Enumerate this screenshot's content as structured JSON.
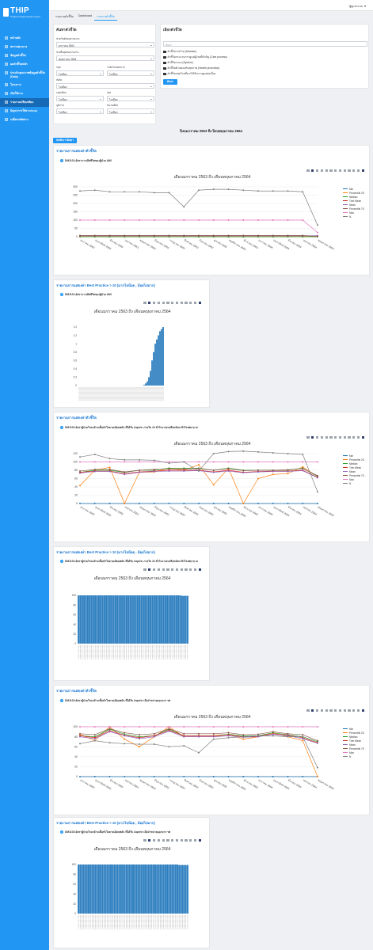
{
  "app": {
    "logo": "THIP",
    "logo_sub": "Thailand Hospital Indicator Project"
  },
  "user": {
    "name": "ผู้ดูแลระบบ"
  },
  "menu": [
    {
      "label": "หน้าหลัก",
      "icon": "home-icon"
    },
    {
      "label": "สถานพยาบาล",
      "icon": "hospital-icon"
    },
    {
      "label": "ข้อมูลตัวชี้วัด",
      "icon": "database-icon"
    },
    {
      "label": "ผลตัวชี้วัดหลัก",
      "icon": "chart-icon"
    },
    {
      "label": "ประเมินคุณภาพข้อมูลตัวชี้วัด (Data)",
      "icon": "check-icon"
    },
    {
      "label": "โครงการ",
      "icon": "folder-icon"
    },
    {
      "label": "เปิดใช้งาน",
      "icon": "power-icon"
    },
    {
      "label": "รายงานเปรียบเทียบ",
      "icon": "compare-icon"
    },
    {
      "label": "ปัญหาการใช้งานระบบ",
      "icon": "help-icon"
    },
    {
      "label": "เปลี่ยนรหัสผ่าน",
      "icon": "key-icon"
    }
  ],
  "tabs": [
    "รายงานตัวชี้วัด",
    "Dashboard",
    "รายงานตัวชี้วัด"
  ],
  "filter": {
    "title": "ค้นหาตัวชี้วัด",
    "start_label": "ช่วงเริ่มต้นของรายงาน",
    "start_value": "มกราคม 2563",
    "end_label": "ช่วงสิ้นสุดของรายงาน",
    "end_value": "พฤษภาคม 2564",
    "fields": [
      {
        "label": "กลุ่ม",
        "value": "ไม่เลือก"
      },
      {
        "label": "ระดับโรงพยาบาล",
        "value": "ไม่เลือก"
      },
      {
        "label": "สังกัด",
        "value": "ไม่เลือก"
      },
      {
        "label": "กลุ่มเขียน",
        "value": "ไม่เลือก"
      },
      {
        "label": "เขต",
        "value": "ไม่เลือก"
      },
      {
        "label": "ภูมิภาค",
        "value": "ไม่เลือก"
      },
      {
        "label": "ขนาดเตียง",
        "value": "ไม่เลือก"
      }
    ]
  },
  "indicator_panel": {
    "title": "เลือกตัวชี้วัด",
    "search_placeholder": "ค้นหา",
    "tree": [
      "ตัวชี้วัดรายโรค (Disease)",
      "ตัวชี้วัดกระบวนการดูแลผู้ป่วยที่สำคัญ (Care process)",
      "ตัวชี้วัดระบบ (System)",
      "ตัวชี้วัดด้านส่งเสริมสุขภาพ (Health promotion)",
      "ตัวชี้วัดกลุ่มโรคที่ควรได้รับการดูแลต่อเนื่อง"
    ],
    "button": "ค้นหา"
  },
  "report_heading": "ปีงบมกราคม 2563 ถึง ปีงบพฤษภาคม 2564",
  "export_button": "บันทึกการค้นหา",
  "section_title_trend": "รายงานการแสดงค่าตัวชี้วัด",
  "section_title_best": "รายงานการแสดงค่า Best Practice > 10 (มากไปน้อย , น้อยไปมาก)",
  "chart_title": "เดือนมกราคม 2563 ถึง เดือนพฤษภาคม 2564",
  "legend": [
    {
      "name": "Min",
      "color": "#1f77b4"
    },
    {
      "name": "Percentile 25",
      "color": "#ff7f0e"
    },
    {
      "name": "Median",
      "color": "#2ca02c"
    },
    {
      "name": "Trim Mean",
      "color": "#d62728"
    },
    {
      "name": "Mean",
      "color": "#9467bd"
    },
    {
      "name": "Percentile 75",
      "color": "#8c564b"
    },
    {
      "name": "Max",
      "color": "#e377c2"
    },
    {
      "name": "N",
      "color": "#7f7f7f"
    }
  ],
  "months": [
    "มกราคม 2563",
    "กุมภาพันธ์ 2563",
    "มีนาคม 2563",
    "เมษายน 2563",
    "พฤษภาคม 2563",
    "มิถุนายน 2563",
    "กรกฎาคม 2563",
    "สิงหาคม 2563",
    "กันยายน 2563",
    "ตุลาคม 2563",
    "พฤศจิกายน 2563",
    "ธันวาคม 2563",
    "มกราคม 2564",
    "กุมภาพันธ์ 2564",
    "มีนาคม 2564",
    "เมษายน 2564",
    "พฤษภาคม 2564"
  ],
  "indicators": [
    {
      "code": "DM1101",
      "name": "อัตราการเสียชีวิตของผู้ป่วย AMI"
    },
    {
      "code": "DM1102",
      "name": "อัตราผู้ป่วยโรคกล้ามเนื้อหัวใจตายเฉียบพลัน ที่ได้รับ Aspirin ภายใน 24 ชั่วโมง ก่อนหรือหลังมาถึงโรงพยาบาล"
    },
    {
      "code": "DM1103",
      "name": "อัตราผู้ป่วยโรคกล้ามเนื้อหัวใจตายเฉียบพลัน ที่ได้รับ Aspirin เมื่อจำหน่ายออกจาก รพ"
    }
  ],
  "chart_data": [
    {
      "type": "line",
      "title": "เดือนมกราคม 2563 ถึง เดือนพฤษภาคม 2564",
      "x": [
        "มกราคม 2563",
        "กุมภาพันธ์ 2563",
        "มีนาคม 2563",
        "เมษายน 2563",
        "พฤษภาคม 2563",
        "มิถุนายน 2563",
        "กรกฎาคม 2563",
        "สิงหาคม 2563",
        "กันยายน 2563",
        "ตุลาคม 2563",
        "พฤศจิกายน 2563",
        "ธันวาคม 2563",
        "มกราคม 2564",
        "กุมภาพันธ์ 2564",
        "มีนาคม 2564",
        "เมษายน 2564",
        "พฤษภาคม 2564"
      ],
      "ylim": [
        0,
        300
      ],
      "yticks": [
        0,
        50,
        100,
        150,
        200,
        250,
        300
      ],
      "series": [
        {
          "name": "Min",
          "values": [
            0,
            0,
            0,
            0,
            0,
            0,
            0,
            0,
            0,
            0,
            0,
            0,
            0,
            0,
            0,
            0,
            0
          ]
        },
        {
          "name": "Percentile 25",
          "values": [
            0,
            0,
            0,
            0,
            0,
            0,
            0,
            0,
            0,
            0,
            0,
            0,
            0,
            0,
            0,
            0,
            0
          ]
        },
        {
          "name": "Median",
          "values": [
            0,
            0,
            0,
            0,
            0,
            0,
            0,
            0,
            0,
            0,
            0,
            0,
            0,
            0,
            0,
            0,
            0
          ]
        },
        {
          "name": "Trim Mean",
          "values": [
            5,
            5,
            5,
            5,
            5,
            5,
            5,
            5,
            5,
            5,
            5,
            5,
            5,
            5,
            5,
            5,
            5
          ]
        },
        {
          "name": "Mean",
          "values": [
            6,
            6,
            6,
            6,
            6,
            6,
            6,
            6,
            6,
            6,
            6,
            6,
            6,
            6,
            6,
            6,
            6
          ]
        },
        {
          "name": "Percentile 75",
          "values": [
            7,
            7,
            7,
            7,
            7,
            7,
            7,
            7,
            7,
            7,
            7,
            7,
            7,
            7,
            7,
            7,
            2
          ]
        },
        {
          "name": "Max",
          "values": [
            100,
            100,
            100,
            100,
            100,
            100,
            100,
            100,
            100,
            100,
            100,
            100,
            100,
            100,
            100,
            100,
            25
          ]
        },
        {
          "name": "N",
          "values": [
            275,
            280,
            270,
            270,
            270,
            265,
            265,
            180,
            280,
            285,
            285,
            280,
            275,
            275,
            275,
            270,
            70
          ]
        }
      ]
    },
    {
      "type": "bar",
      "title": "เดือนมกราคม 2563 ถึง เดือนพฤษภาคม 2564",
      "ylim": [
        0,
        1.4
      ],
      "yticks": [
        0,
        0.2,
        0.4,
        0.6,
        0.8,
        1,
        1.2,
        1.4
      ],
      "values": [
        0,
        0,
        0,
        0,
        0,
        0,
        0,
        0,
        0,
        0,
        0,
        0,
        0,
        0,
        0,
        0,
        0,
        0,
        0,
        0,
        0,
        0,
        0,
        0,
        0,
        0,
        0,
        0,
        0,
        0,
        0,
        0,
        0,
        0,
        0,
        0,
        0,
        0,
        0,
        0,
        0,
        0.02,
        0.05,
        0.1,
        0.2,
        0.35,
        0.6,
        0.8,
        1.0,
        1.1,
        1.2,
        1.3,
        1.35,
        1.4
      ]
    },
    {
      "type": "line",
      "title": "เดือนมกราคม 2563 ถึง เดือนพฤษภาคม 2564",
      "x": [
        "มกราคม 2563",
        "กุมภาพันธ์ 2563",
        "มีนาคม 2563",
        "เมษายน 2563",
        "พฤษภาคม 2563",
        "มิถุนายน 2563",
        "กรกฎาคม 2563",
        "สิงหาคม 2563",
        "กันยายน 2563",
        "ตุลาคม 2563",
        "พฤศจิกายน 2563",
        "ธันวาคม 2563",
        "มกราคม 2564",
        "กุมภาพันธ์ 2564",
        "มีนาคม 2564",
        "เมษายน 2564",
        "พฤษภาคม 2564"
      ],
      "ylim": [
        0,
        120
      ],
      "yticks": [
        0,
        20,
        40,
        60,
        80,
        100,
        120
      ],
      "series": [
        {
          "name": "Min",
          "values": [
            0,
            0,
            0,
            0,
            0,
            0,
            0,
            0,
            0,
            0,
            0,
            0,
            0,
            0,
            0,
            0,
            0
          ]
        },
        {
          "name": "Percentile 25",
          "values": [
            43,
            80,
            87,
            0,
            75,
            76,
            85,
            80,
            93,
            45,
            85,
            0,
            60,
            70,
            72,
            88,
            65
          ]
        },
        {
          "name": "Median",
          "values": [
            75,
            80,
            80,
            75,
            80,
            80,
            85,
            85,
            85,
            80,
            85,
            80,
            80,
            80,
            80,
            85,
            65
          ]
        },
        {
          "name": "Trim Mean",
          "values": [
            75,
            78,
            78,
            72,
            76,
            78,
            80,
            80,
            80,
            76,
            80,
            75,
            77,
            78,
            78,
            80,
            63
          ]
        },
        {
          "name": "Mean",
          "values": [
            73,
            77,
            77,
            70,
            75,
            77,
            78,
            78,
            79,
            75,
            78,
            74,
            76,
            77,
            77,
            79,
            62
          ]
        },
        {
          "name": "Percentile 75",
          "values": [
            78,
            82,
            82,
            76,
            80,
            82,
            83,
            83,
            84,
            80,
            84,
            79,
            80,
            80,
            81,
            84,
            67
          ]
        },
        {
          "name": "Max",
          "values": [
            100,
            100,
            100,
            100,
            100,
            100,
            100,
            100,
            100,
            100,
            100,
            100,
            100,
            100,
            100,
            100,
            100
          ]
        },
        {
          "name": "N",
          "values": [
            112,
            118,
            108,
            105,
            105,
            104,
            97,
            100,
            78,
            120,
            125,
            126,
            124,
            122,
            120,
            118,
            28
          ]
        }
      ]
    },
    {
      "type": "bar",
      "title": "เดือนมกราคม 2563 ถึง เดือนพฤษภาคม 2564",
      "ylim": [
        0,
        100
      ],
      "yticks": [
        0,
        20,
        40,
        60,
        80,
        100
      ],
      "values": [
        100,
        100,
        100,
        100,
        100,
        100,
        100,
        100,
        100,
        100,
        100,
        100,
        100,
        100,
        100,
        100,
        100,
        100,
        100,
        100,
        100,
        100,
        100,
        100,
        100,
        100,
        100,
        100,
        100,
        100,
        100,
        100,
        100,
        100,
        100,
        100,
        100,
        100,
        100,
        100,
        100,
        100,
        100,
        100,
        100,
        100,
        100,
        100,
        100,
        100,
        100,
        100,
        100,
        100,
        100,
        100,
        99,
        99,
        99,
        99
      ]
    },
    {
      "type": "line",
      "title": "เดือนมกราคม 2563 ถึง เดือนพฤษภาคม 2564",
      "x": [
        "มกราคม 2563",
        "กุมภาพันธ์ 2563",
        "มีนาคม 2563",
        "เมษายน 2563",
        "พฤษภาคม 2563",
        "มิถุนายน 2563",
        "กรกฎาคม 2563",
        "สิงหาคม 2563",
        "กันยายน 2563",
        "ตุลาคม 2563",
        "พฤศจิกายน 2563",
        "ธันวาคม 2563",
        "มกราคม 2564",
        "กุมภาพันธ์ 2564",
        "มีนาคม 2564",
        "เมษายน 2564",
        "พฤษภาคม 2564"
      ],
      "ylim": [
        0,
        100
      ],
      "yticks": [
        0,
        20,
        40,
        60,
        80,
        100
      ],
      "series": [
        {
          "name": "Min",
          "values": [
            0,
            0,
            0,
            0,
            0,
            0,
            0,
            0,
            0,
            0,
            0,
            0,
            0,
            0,
            0,
            0,
            0
          ]
        },
        {
          "name": "Percentile 25",
          "values": [
            85,
            72,
            100,
            75,
            60,
            80,
            100,
            80,
            80,
            80,
            85,
            75,
            80,
            88,
            80,
            72,
            0
          ]
        },
        {
          "name": "Median",
          "values": [
            82,
            80,
            95,
            85,
            80,
            82,
            95,
            82,
            82,
            82,
            85,
            82,
            82,
            88,
            84,
            80,
            70
          ]
        },
        {
          "name": "Trim Mean",
          "values": [
            82,
            78,
            92,
            83,
            78,
            82,
            93,
            82,
            82,
            82,
            84,
            80,
            81,
            86,
            83,
            78,
            68
          ]
        },
        {
          "name": "Mean",
          "values": [
            80,
            76,
            90,
            82,
            76,
            80,
            91,
            80,
            80,
            80,
            82,
            79,
            80,
            85,
            82,
            76,
            67
          ]
        },
        {
          "name": "Percentile 75",
          "values": [
            86,
            84,
            96,
            88,
            84,
            86,
            96,
            86,
            86,
            86,
            88,
            84,
            85,
            90,
            86,
            84,
            72
          ]
        },
        {
          "name": "Max",
          "values": [
            100,
            100,
            100,
            100,
            100,
            100,
            100,
            100,
            100,
            100,
            100,
            100,
            100,
            100,
            100,
            100,
            100
          ]
        },
        {
          "name": "N",
          "values": [
            66,
            72,
            68,
            66,
            65,
            65,
            60,
            62,
            48,
            75,
            78,
            80,
            82,
            82,
            80,
            80,
            18
          ]
        }
      ]
    },
    {
      "type": "bar",
      "title": "เดือนมกราคม 2563 ถึง เดือนพฤษภาคม 2564",
      "ylim": [
        0,
        100
      ],
      "yticks": [
        0,
        20,
        40,
        60,
        80,
        100
      ],
      "values": [
        100,
        100,
        100,
        100,
        100,
        100,
        100,
        100,
        100,
        100,
        100,
        100,
        100,
        100,
        100,
        100,
        100,
        100,
        100,
        100,
        100,
        100,
        100,
        100,
        100,
        100,
        100,
        100,
        100,
        100,
        100,
        100,
        100,
        100,
        100,
        100,
        100,
        100,
        100,
        100,
        100,
        100,
        100,
        100,
        100,
        100,
        100,
        100,
        100,
        100,
        100,
        100,
        100,
        100,
        100,
        100,
        100,
        100,
        100,
        99,
        99,
        99,
        99,
        99,
        99
      ]
    }
  ]
}
